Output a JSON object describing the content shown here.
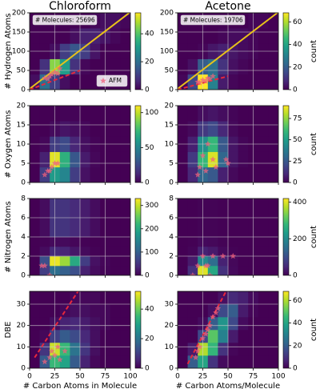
{
  "chart_data": [
    {
      "type": "heatmap",
      "title": "Chloroform",
      "ylabel": "# Hydrogen Atoms",
      "annotation": "# Molecules: 25696",
      "xlim": [
        0,
        100
      ],
      "xticks": [
        0,
        25,
        50,
        75,
        100
      ],
      "ylim": [
        0,
        200
      ],
      "yticks": [
        0,
        50,
        100,
        150,
        200
      ],
      "grid": true,
      "xbins": [
        0,
        10,
        20,
        30,
        40,
        50,
        60,
        70,
        80,
        90,
        100
      ],
      "ybins": [
        0,
        40,
        80,
        120,
        160,
        200
      ],
      "z": [
        [
          2,
          20,
          10,
          2,
          0,
          0,
          0,
          0,
          0,
          0
        ],
        [
          0,
          8,
          45,
          30,
          8,
          1,
          0,
          0,
          0,
          0
        ],
        [
          0,
          0,
          2,
          10,
          15,
          10,
          3,
          0,
          0,
          0
        ],
        [
          0,
          0,
          0,
          0,
          2,
          5,
          5,
          3,
          1,
          0
        ],
        [
          0,
          0,
          0,
          0,
          0,
          0,
          1,
          2,
          2,
          1
        ]
      ],
      "clim": [
        0,
        55
      ],
      "cticks": [
        0,
        20,
        40
      ],
      "lines": [
        {
          "color": "#e8c21a",
          "dash": false,
          "x": [
            0,
            99
          ],
          "values": [
            2,
            200
          ]
        },
        {
          "color": "#e8283c",
          "dash": true,
          "x": [
            0,
            50
          ],
          "values": [
            0,
            50
          ]
        }
      ],
      "points": {
        "name": "AFM",
        "color": "#f0607c",
        "x": [
          15,
          18,
          20,
          22,
          25,
          28,
          30
        ],
        "values": [
          30,
          28,
          35,
          40,
          45,
          42,
          55
        ]
      },
      "legend": "lower right"
    },
    {
      "type": "heatmap",
      "title": "Acetone",
      "clabel": "count",
      "annotation": "# Molecules: 19706",
      "xlim": [
        0,
        100
      ],
      "xticks": [
        0,
        25,
        50,
        75,
        100
      ],
      "ylim": [
        0,
        200
      ],
      "yticks": [
        0,
        50,
        100,
        150,
        200
      ],
      "grid": true,
      "xbins": [
        0,
        10,
        20,
        30,
        40,
        50,
        60,
        70,
        80,
        90,
        100
      ],
      "ybins": [
        0,
        40,
        80,
        120,
        160,
        200
      ],
      "z": [
        [
          1,
          15,
          68,
          30,
          5,
          1,
          0,
          0,
          0,
          0
        ],
        [
          0,
          3,
          20,
          25,
          10,
          3,
          1,
          0,
          0,
          0
        ],
        [
          0,
          0,
          1,
          4,
          6,
          4,
          2,
          1,
          0,
          0
        ],
        [
          0,
          0,
          0,
          0,
          1,
          2,
          2,
          1,
          0,
          0
        ],
        [
          0,
          0,
          0,
          0,
          0,
          0,
          0,
          1,
          1,
          0
        ]
      ],
      "clim": [
        0,
        68
      ],
      "cticks": [
        0,
        20,
        40,
        60
      ],
      "lines": [
        {
          "color": "#e8c21a",
          "dash": false,
          "x": [
            0,
            99
          ],
          "values": [
            2,
            200
          ]
        },
        {
          "color": "#e8283c",
          "dash": true,
          "x": [
            0,
            50
          ],
          "values": [
            0,
            35
          ]
        }
      ],
      "points": {
        "color": "#f0607c",
        "x": [
          20,
          22,
          25,
          28,
          30,
          32,
          35
        ],
        "values": [
          20,
          18,
          25,
          22,
          30,
          28,
          35
        ]
      }
    },
    {
      "type": "heatmap",
      "ylabel": "# Oxygen Atoms",
      "xlim": [
        0,
        100
      ],
      "xticks": [
        0,
        25,
        50,
        75,
        100
      ],
      "ylim": [
        0,
        20
      ],
      "yticks": [
        0,
        5,
        10,
        15,
        20
      ],
      "grid": true,
      "xbins": [
        0,
        10,
        20,
        30,
        40,
        50,
        60,
        70,
        80,
        90,
        100
      ],
      "ybins": [
        0,
        4,
        8,
        12,
        16,
        20
      ],
      "z": [
        [
          0,
          20,
          60,
          50,
          20,
          5,
          1,
          0,
          0,
          0
        ],
        [
          0,
          10,
          105,
          70,
          30,
          8,
          2,
          0,
          0,
          0
        ],
        [
          0,
          2,
          20,
          25,
          12,
          4,
          1,
          0,
          0,
          0
        ],
        [
          0,
          0,
          3,
          6,
          4,
          2,
          0,
          0,
          0,
          0
        ],
        [
          0,
          0,
          0,
          1,
          1,
          0,
          0,
          0,
          0,
          0
        ]
      ],
      "clim": [
        0,
        110
      ],
      "cticks": [
        0,
        50,
        100
      ],
      "points": {
        "color": "#f0607c",
        "x": [
          15,
          18,
          20,
          22,
          25,
          28
        ],
        "values": [
          2,
          3,
          3,
          4,
          5,
          5
        ]
      }
    },
    {
      "type": "heatmap",
      "clabel": "count",
      "xlim": [
        0,
        100
      ],
      "xticks": [
        0,
        25,
        50,
        75,
        100
      ],
      "ylim": [
        0,
        20
      ],
      "yticks": [
        0,
        5,
        10,
        15,
        20
      ],
      "grid": true,
      "xbins": [
        0,
        10,
        20,
        30,
        40,
        50,
        60,
        70,
        80,
        90,
        100
      ],
      "ybins": [
        0,
        4,
        8,
        12,
        16,
        20
      ],
      "z": [
        [
          0,
          10,
          30,
          25,
          8,
          2,
          0,
          0,
          0,
          0
        ],
        [
          0,
          15,
          60,
          85,
          30,
          5,
          1,
          0,
          0,
          0
        ],
        [
          0,
          8,
          45,
          60,
          25,
          5,
          1,
          0,
          0,
          0
        ],
        [
          0,
          2,
          15,
          20,
          10,
          2,
          0,
          0,
          0,
          0
        ],
        [
          0,
          0,
          3,
          5,
          3,
          1,
          0,
          0,
          0,
          0
        ]
      ],
      "clim": [
        0,
        90
      ],
      "cticks": [
        0,
        25,
        50,
        75
      ],
      "points": {
        "color": "#f0607c",
        "x": [
          20,
          22,
          25,
          28,
          30,
          35,
          38,
          48,
          50
        ],
        "values": [
          2,
          4,
          7,
          3,
          10,
          6,
          4,
          6,
          5
        ]
      }
    },
    {
      "type": "heatmap",
      "ylabel": "# Nitrogen Atoms",
      "xlim": [
        0,
        100
      ],
      "xticks": [
        0,
        25,
        50,
        75,
        100
      ],
      "ylim": [
        0,
        8
      ],
      "yticks": [
        0,
        2,
        4,
        6,
        8
      ],
      "grid": true,
      "xbins": [
        0,
        10,
        20,
        30,
        40,
        50,
        60,
        70,
        80,
        90,
        100
      ],
      "ybins": [
        0,
        1,
        2,
        3,
        4,
        8
      ],
      "z": [
        [
          0,
          60,
          120,
          100,
          80,
          30,
          10,
          3,
          0,
          0
        ],
        [
          0,
          80,
          320,
          280,
          200,
          60,
          15,
          5,
          0,
          0
        ],
        [
          0,
          10,
          40,
          35,
          20,
          8,
          2,
          0,
          0,
          0
        ],
        [
          0,
          2,
          8,
          8,
          5,
          2,
          0,
          0,
          0,
          0
        ],
        [
          0,
          10,
          50,
          50,
          40,
          25,
          10,
          0,
          0,
          0
        ]
      ],
      "clim": [
        0,
        330
      ],
      "cticks": [
        0,
        100,
        200,
        300
      ],
      "points": {
        "color": "#f0607c",
        "x": [
          12,
          15,
          20
        ],
        "values": [
          1,
          1,
          0
        ]
      }
    },
    {
      "type": "heatmap",
      "clabel": "count",
      "xlim": [
        0,
        100
      ],
      "xticks": [
        0,
        25,
        50,
        75,
        100
      ],
      "ylim": [
        0,
        8
      ],
      "yticks": [
        0,
        2,
        4,
        6,
        8
      ],
      "grid": true,
      "xbins": [
        0,
        10,
        20,
        30,
        40,
        50,
        60,
        70,
        80,
        90,
        100
      ],
      "ybins": [
        0,
        1,
        2,
        3,
        4,
        8
      ],
      "z": [
        [
          0,
          60,
          400,
          250,
          60,
          10,
          0,
          0,
          0,
          0
        ],
        [
          0,
          30,
          200,
          150,
          40,
          8,
          0,
          0,
          0,
          0
        ],
        [
          0,
          5,
          40,
          30,
          10,
          2,
          0,
          0,
          0,
          0
        ],
        [
          0,
          1,
          10,
          8,
          3,
          0,
          0,
          0,
          0,
          0
        ],
        [
          0,
          0,
          3,
          3,
          1,
          0,
          0,
          0,
          0,
          0
        ]
      ],
      "clim": [
        0,
        420
      ],
      "cticks": [
        0,
        200,
        400
      ],
      "points": {
        "color": "#f0607c",
        "x": [
          15,
          20,
          25,
          28,
          30,
          32,
          35,
          45,
          55
        ],
        "values": [
          0,
          1,
          2,
          1,
          1,
          0,
          2,
          2,
          2
        ]
      }
    },
    {
      "type": "heatmap",
      "ylabel": "DBE",
      "xlabel": "# Carbon Atoms in Molecule",
      "xlim": [
        0,
        100
      ],
      "xticks": [
        0,
        25,
        50,
        75,
        100
      ],
      "ylim": [
        0,
        36
      ],
      "yticks": [
        0,
        10,
        20,
        30
      ],
      "grid": true,
      "xbins": [
        0,
        10,
        20,
        30,
        40,
        50,
        60,
        70,
        80,
        90,
        100
      ],
      "ybins": [
        0,
        6,
        12,
        18,
        24,
        30,
        36
      ],
      "z": [
        [
          0,
          15,
          35,
          30,
          15,
          5,
          1,
          0,
          0,
          0
        ],
        [
          0,
          8,
          48,
          35,
          20,
          8,
          2,
          0,
          0,
          0
        ],
        [
          0,
          1,
          10,
          15,
          12,
          6,
          2,
          0,
          0,
          0
        ],
        [
          0,
          0,
          2,
          5,
          6,
          4,
          2,
          1,
          0,
          0
        ],
        [
          0,
          0,
          0,
          1,
          2,
          2,
          1,
          1,
          0,
          0
        ],
        [
          0,
          0,
          0,
          0,
          1,
          1,
          1,
          0,
          0,
          0
        ]
      ],
      "clim": [
        0,
        52
      ],
      "cticks": [
        0,
        20,
        40
      ],
      "lines": [
        {
          "color": "#e8283c",
          "dash": true,
          "x": [
            5,
            48
          ],
          "values": [
            5,
            36
          ]
        }
      ],
      "points": {
        "color": "#f0607c",
        "x": [
          15,
          20,
          22,
          25,
          28,
          30,
          35
        ],
        "values": [
          3,
          5,
          8,
          6,
          10,
          4,
          8
        ]
      }
    },
    {
      "type": "heatmap",
      "xlabel": "# Carbon Atoms/Molecule",
      "clabel": "count",
      "xlim": [
        0,
        100
      ],
      "xticks": [
        0,
        25,
        50,
        75,
        100
      ],
      "ylim": [
        0,
        36
      ],
      "yticks": [
        0,
        10,
        20,
        30
      ],
      "grid": true,
      "xbins": [
        0,
        10,
        20,
        30,
        40,
        50,
        60,
        70,
        80,
        90,
        100
      ],
      "ybins": [
        0,
        6,
        12,
        18,
        24,
        30,
        36
      ],
      "z": [
        [
          0,
          20,
          40,
          10,
          2,
          0,
          0,
          0,
          0,
          0
        ],
        [
          0,
          5,
          60,
          45,
          10,
          1,
          0,
          0,
          0,
          0
        ],
        [
          0,
          0,
          15,
          50,
          30,
          5,
          0,
          0,
          0,
          0
        ],
        [
          0,
          0,
          2,
          20,
          35,
          15,
          2,
          0,
          0,
          0
        ],
        [
          0,
          0,
          0,
          3,
          15,
          20,
          5,
          1,
          0,
          0
        ],
        [
          0,
          0,
          0,
          0,
          3,
          8,
          6,
          2,
          0,
          0
        ]
      ],
      "clim": [
        0,
        68
      ],
      "cticks": [
        0,
        20,
        40,
        60
      ],
      "lines": [
        {
          "color": "#e8283c",
          "dash": true,
          "x": [
            10,
            48
          ],
          "values": [
            2,
            36
          ]
        }
      ],
      "points": {
        "color": "#f0607c",
        "x": [
          18,
          20,
          22,
          25,
          28,
          30,
          32,
          35,
          38,
          40
        ],
        "values": [
          5,
          8,
          10,
          14,
          16,
          18,
          20,
          24,
          26,
          28
        ]
      }
    }
  ]
}
